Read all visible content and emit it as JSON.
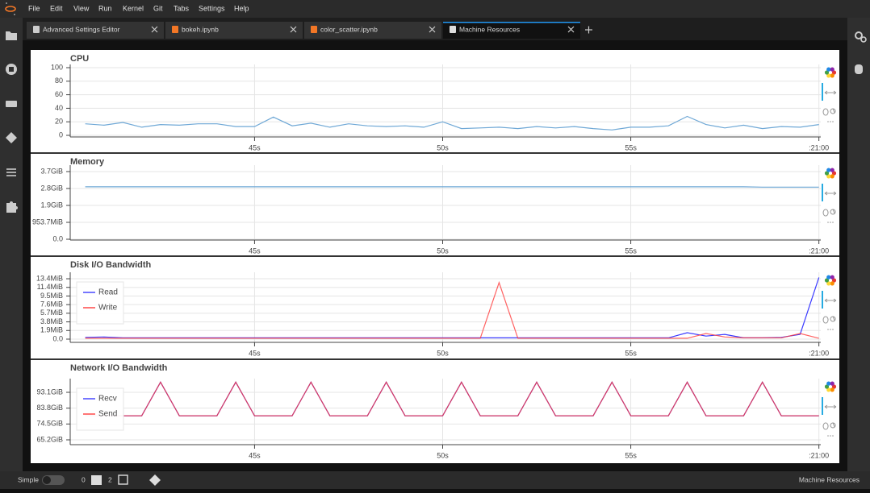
{
  "menu": [
    "File",
    "Edit",
    "View",
    "Run",
    "Kernel",
    "Git",
    "Tabs",
    "Settings",
    "Help"
  ],
  "tabs": [
    "Advanced Settings Editor",
    "bokeh.ipynb",
    "color_scatter.ipynb",
    "Machine Resources"
  ],
  "status_bar": {
    "mode": "Simple",
    "terminals": "0",
    "kernels": "2",
    "right": "Machine Resources"
  },
  "chart_data": [
    {
      "type": "line",
      "title": "CPU",
      "x": [
        40.5,
        41,
        41.5,
        42,
        42.5,
        43,
        43.5,
        44,
        44.5,
        45,
        45.5,
        46,
        46.5,
        47,
        47.5,
        48,
        48.5,
        49,
        49.5,
        50,
        50.5,
        51,
        51.5,
        52,
        52.5,
        53,
        53.5,
        54,
        54.5,
        55,
        55.5,
        56,
        56.5,
        57,
        57.5,
        58,
        58.5,
        59,
        59.5,
        60
      ],
      "values": [
        17,
        15,
        19,
        12,
        16,
        15,
        17,
        17,
        13,
        13,
        27,
        14,
        18,
        12,
        17,
        14,
        13,
        14,
        12,
        20,
        10,
        11,
        12,
        10,
        13,
        11,
        13,
        10,
        8,
        12,
        12,
        14,
        28,
        16,
        11,
        15,
        10,
        13,
        12,
        16
      ],
      "color": "#6fa8d6",
      "xlim": [
        40.1,
        60.05
      ],
      "xticks": [
        {
          "value": 45,
          "label": "45s"
        },
        {
          "value": 50,
          "label": "50s"
        },
        {
          "value": 55,
          "label": "55s"
        },
        {
          "value": 60,
          "label": ":21:00"
        }
      ],
      "ylim": [
        -2.38,
        104.76
      ],
      "yticks": [
        0,
        20,
        40,
        60,
        80,
        100
      ],
      "grid": true
    },
    {
      "type": "line",
      "title": "Memory",
      "x": [
        40.5,
        41,
        41.5,
        42,
        42.5,
        43,
        43.5,
        44,
        44.5,
        45,
        45.5,
        46,
        46.5,
        47,
        47.5,
        48,
        48.5,
        49,
        49.5,
        50,
        50.5,
        51,
        51.5,
        52,
        52.5,
        53,
        53.5,
        54,
        54.5,
        55,
        55.5,
        56,
        56.5,
        57,
        57.5,
        58,
        58.5,
        59,
        59.5,
        60
      ],
      "values": [
        3100000000,
        3100000000,
        3100000000,
        3100000000,
        3100000000,
        3100000000,
        3100000000,
        3100000000,
        3100000000,
        3100000000,
        3100000000,
        3100000000,
        3100000000,
        3100000000,
        3100000000,
        3100000000,
        3100000000,
        3100000000,
        3100000000,
        3100000000,
        3100000000,
        3100000000,
        3100000000,
        3100000000,
        3100000000,
        3100000000,
        3100000000,
        3100000000,
        3100000000,
        3100000000,
        3100000000,
        3100000000,
        3100000000,
        3100000000,
        3100000000,
        3100000000,
        3080000000,
        3080000000,
        3080000000,
        3080000000
      ],
      "color": "#6fa8d6",
      "xlim": [
        40.1,
        60.05
      ],
      "xticks": [
        {
          "value": 45,
          "label": "45s"
        },
        {
          "value": 50,
          "label": "50s"
        },
        {
          "value": 55,
          "label": "55s"
        },
        {
          "value": 60,
          "label": ":21:00"
        }
      ],
      "ylim": [
        -48000000,
        4380000000
      ],
      "yticks": [
        {
          "value": 0,
          "label": "0.0"
        },
        {
          "value": 1000000000,
          "label": "953.7MiB"
        },
        {
          "value": 2000000000,
          "label": "1.9GiB"
        },
        {
          "value": 3000000000,
          "label": "2.8GiB"
        },
        {
          "value": 4000000000,
          "label": "3.7GiB"
        }
      ],
      "grid": true
    },
    {
      "type": "line",
      "title": "Disk I/O Bandwidth",
      "x": [
        40.5,
        41,
        41.5,
        42,
        42.5,
        43,
        43.5,
        44,
        44.5,
        45,
        45.5,
        46,
        46.5,
        47,
        47.5,
        48,
        48.5,
        49,
        49.5,
        50,
        50.5,
        51,
        51.5,
        52,
        52.5,
        53,
        53.5,
        54,
        54.5,
        55,
        55.5,
        56,
        56.5,
        57,
        57.5,
        58,
        58.5,
        59,
        59.5,
        60
      ],
      "series": [
        {
          "name": "Read",
          "color": "#3b3bff",
          "values": [
            400000,
            500000,
            300000,
            300000,
            300000,
            300000,
            300000,
            300000,
            300000,
            300000,
            300000,
            300000,
            300000,
            300000,
            300000,
            300000,
            300000,
            300000,
            300000,
            300000,
            300000,
            300000,
            300000,
            300000,
            300000,
            300000,
            300000,
            300000,
            300000,
            300000,
            300000,
            300000,
            1500000,
            700000,
            1100000,
            300000,
            300000,
            400000,
            1100000,
            14300000
          ]
        },
        {
          "name": "Write",
          "color": "#ff3b3b",
          "values": [
            200000,
            200000,
            200000,
            200000,
            200000,
            200000,
            200000,
            200000,
            200000,
            200000,
            200000,
            200000,
            200000,
            200000,
            200000,
            200000,
            200000,
            200000,
            200000,
            200000,
            200000,
            200000,
            13100000,
            200000,
            200000,
            200000,
            200000,
            200000,
            200000,
            200000,
            200000,
            200000,
            200000,
            1300000,
            500000,
            300000,
            300000,
            300000,
            1300000,
            200000
          ]
        }
      ],
      "legend": "top_left",
      "xlim": [
        40.1,
        60.05
      ],
      "xticks": [
        {
          "value": 45,
          "label": "45s"
        },
        {
          "value": 50,
          "label": "50s"
        },
        {
          "value": 55,
          "label": "55s"
        },
        {
          "value": 60,
          "label": ":21:00"
        }
      ],
      "ylim": [
        -750000,
        15500000
      ],
      "yticks": [
        {
          "value": 0,
          "label": "0.0"
        },
        {
          "value": 2000000,
          "label": "1.9MiB"
        },
        {
          "value": 4000000,
          "label": "3.8MiB"
        },
        {
          "value": 6000000,
          "label": "5.7MiB"
        },
        {
          "value": 8000000,
          "label": "7.6MiB"
        },
        {
          "value": 10000000,
          "label": "9.5MiB"
        },
        {
          "value": 12000000,
          "label": "11.4MiB"
        },
        {
          "value": 14000000,
          "label": "13.4MiB"
        }
      ],
      "grid": true
    },
    {
      "type": "line",
      "title": "Network I/O Bandwidth",
      "x": [
        40.5,
        41,
        41.5,
        42,
        42.5,
        43,
        43.5,
        44,
        44.5,
        45,
        45.5,
        46,
        46.5,
        47,
        47.5,
        48,
        48.5,
        49,
        49.5,
        50,
        50.5,
        51,
        51.5,
        52,
        52.5,
        53,
        53.5,
        54,
        54.5,
        55,
        55.5,
        56,
        56.5,
        57,
        57.5,
        58,
        58.5,
        59,
        59.5,
        60
      ],
      "series": [
        {
          "name": "Recv",
          "color": "#3b3bff",
          "values": [
            85200000000,
            85200000000,
            85200000000,
            85200000000,
            106400000000,
            85200000000,
            85200000000,
            85200000000,
            106400000000,
            85200000000,
            85200000000,
            85200000000,
            106400000000,
            85200000000,
            85200000000,
            85200000000,
            106400000000,
            85200000000,
            85200000000,
            85200000000,
            106400000000,
            85200000000,
            85200000000,
            85200000000,
            106400000000,
            85200000000,
            85200000000,
            85200000000,
            106400000000,
            85200000000,
            85200000000,
            85200000000,
            106400000000,
            85200000000,
            85200000000,
            85200000000,
            106400000000,
            85200000000,
            85200000000,
            85200000000
          ]
        },
        {
          "name": "Send",
          "color": "#ff3b3b",
          "values": [
            85200000000,
            85200000000,
            85200000000,
            85200000000,
            106400000000,
            85200000000,
            85200000000,
            85200000000,
            106400000000,
            85200000000,
            85200000000,
            85200000000,
            106400000000,
            85200000000,
            85200000000,
            85200000000,
            106400000000,
            85200000000,
            85200000000,
            85200000000,
            106400000000,
            85200000000,
            85200000000,
            85200000000,
            106400000000,
            85200000000,
            85200000000,
            85200000000,
            106400000000,
            85200000000,
            85200000000,
            85200000000,
            106400000000,
            85200000000,
            85200000000,
            85200000000,
            106400000000,
            85200000000,
            85200000000,
            85200000000
          ]
        }
      ],
      "legend": "top_left",
      "xlim": [
        40.1,
        60.05
      ],
      "xticks": [
        {
          "value": 45,
          "label": "45s"
        },
        {
          "value": 50,
          "label": "50s"
        },
        {
          "value": 55,
          "label": "55s"
        },
        {
          "value": 60,
          "label": ":21:00"
        }
      ],
      "ylim": [
        66950000000,
        108640000000
      ],
      "yticks": [
        {
          "value": 70000000000,
          "label": "65.2GiB"
        },
        {
          "value": 80000000000,
          "label": "74.5GiB"
        },
        {
          "value": 90000000000,
          "label": "83.8GiB"
        },
        {
          "value": 100000000000,
          "label": "93.1GiB"
        }
      ],
      "grid": true
    }
  ]
}
